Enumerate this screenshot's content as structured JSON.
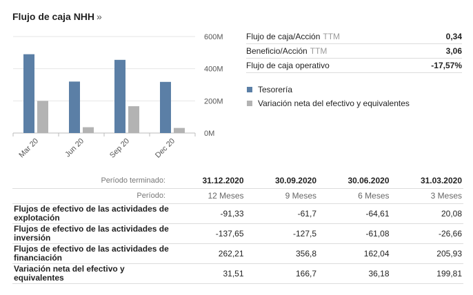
{
  "header": {
    "title": "Flujo de caja NHH",
    "more": "»"
  },
  "colors": {
    "treasury": "#5b7fa6",
    "variation": "#b3b3b3",
    "axis": "#cccccc",
    "text": "#555555"
  },
  "chart_data": {
    "type": "bar",
    "categories": [
      "Mar 20",
      "Jun 20",
      "Sep 20",
      "Dec 20"
    ],
    "series": [
      {
        "name": "Tesorería",
        "color": "#5b7fa6",
        "values": [
          490,
          320,
          455,
          318
        ]
      },
      {
        "name": "Variación neta del efectivo y equivalentes",
        "color": "#b3b3b3",
        "values": [
          199.81,
          36.18,
          166.7,
          31.51
        ]
      }
    ],
    "ylim": [
      0,
      600
    ],
    "yticks": [
      0,
      200,
      400,
      600
    ],
    "ytick_labels": [
      "0M",
      "200M",
      "400M",
      "600M"
    ],
    "grid": true,
    "legend": "right"
  },
  "metrics": [
    {
      "label": "Flujo de caja/Acción",
      "suffix": "TTM",
      "value": "0,34"
    },
    {
      "label": "Beneficio/Acción",
      "suffix": "TTM",
      "value": "3,06"
    },
    {
      "label": "Flujo de caja operativo",
      "suffix": "",
      "value": "-17,57%"
    }
  ],
  "legend": [
    {
      "label": "Tesorería",
      "color": "#5b7fa6"
    },
    {
      "label": "Variación neta del efectivo y equivalentes",
      "color": "#b3b3b3"
    }
  ],
  "table": {
    "period_label": "Período terminado:",
    "periodo_label": "Período:",
    "dates": [
      "31.12.2020",
      "30.09.2020",
      "30.06.2020",
      "31.03.2020"
    ],
    "periods": [
      "12 Meses",
      "9 Meses",
      "6 Meses",
      "3 Meses"
    ],
    "rows": [
      {
        "label": "Flujos de efectivo de las actividades de explotación",
        "values": [
          "-91,33",
          "-61,7",
          "-64,61",
          "20,08"
        ]
      },
      {
        "label": "Flujos de efectivo de las actividades de inversión",
        "values": [
          "-137,65",
          "-127,5",
          "-61,08",
          "-26,66"
        ]
      },
      {
        "label": "Flujos de efectivo de las actividades de financiación",
        "values": [
          "262,21",
          "356,8",
          "162,04",
          "205,93"
        ]
      },
      {
        "label": "Variación neta del efectivo y equivalentes",
        "values": [
          "31,51",
          "166,7",
          "36,18",
          "199,81"
        ]
      }
    ]
  }
}
